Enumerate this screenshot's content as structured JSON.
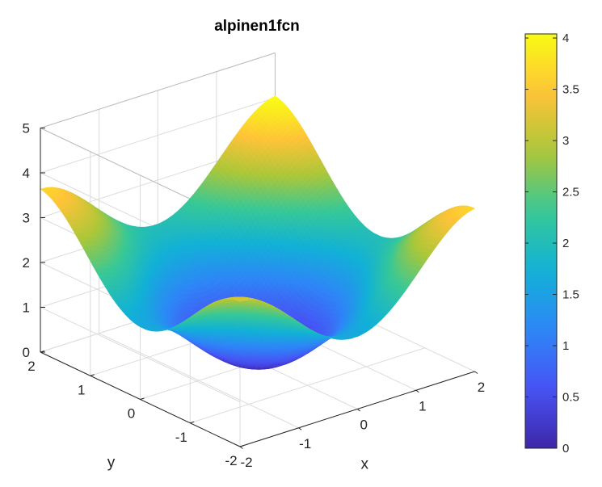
{
  "chart_data": {
    "type": "surface3d",
    "title": "alpinen1fcn",
    "xlabel": "x",
    "ylabel": "y",
    "zlabel": "",
    "function": "f(x,y) = |x*sin(x) + 0.1*x| + |y*sin(y) + 0.1*y|",
    "x_range": [
      -2,
      2
    ],
    "y_range": [
      -2,
      2
    ],
    "zlim": [
      0,
      5
    ],
    "x_ticks": [
      -2,
      -1,
      0,
      1,
      2
    ],
    "y_ticks": [
      -2,
      -1,
      0,
      1,
      2
    ],
    "z_ticks": [
      0,
      1,
      2,
      3,
      4,
      5
    ],
    "grid": true,
    "colormap": "parula",
    "colorbar": {
      "position": "right",
      "limits": [
        0,
        4.04
      ],
      "ticks": [
        0,
        0.5,
        1,
        1.5,
        2,
        2.5,
        3,
        3.5,
        4
      ]
    }
  }
}
